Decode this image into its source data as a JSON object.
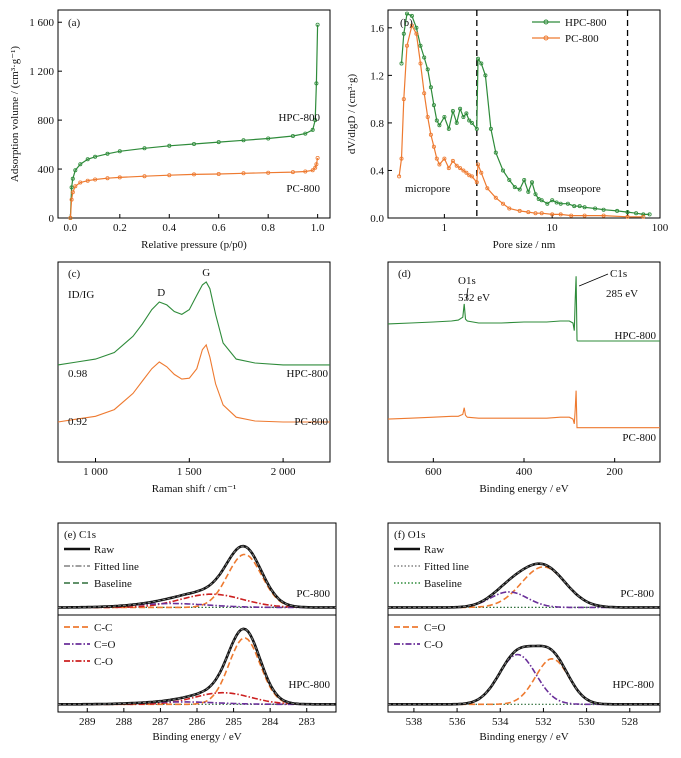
{
  "colors": {
    "green": "#2e8b3a",
    "orange": "#ee7a30",
    "black": "#111111",
    "gray": "#808080",
    "purple": "#6a2f9a",
    "red": "#cc2020",
    "baseline_green": "#2f6f3a"
  },
  "chart_data": [
    {
      "id": "a",
      "type": "line",
      "panel_label": "(a)",
      "xlabel": "Relative pressure (p/p0)",
      "ylabel": "Adsorption volume / (cm³·g⁻¹)",
      "xlim": [
        -0.05,
        1.05
      ],
      "ylim": [
        0,
        1700
      ],
      "xticks": [
        0.0,
        0.2,
        0.4,
        0.6,
        0.8,
        1.0
      ],
      "xtick_labels": [
        "0.0",
        "0.2",
        "0.4",
        "0.6",
        "0.8",
        "1.0"
      ],
      "yticks": [
        0,
        400,
        800,
        1200,
        1600
      ],
      "ytick_labels": [
        "0",
        "400",
        "800",
        "1 200",
        "1 600"
      ],
      "series": [
        {
          "name": "HPC-800",
          "color_key": "green",
          "x": [
            0.0,
            0.005,
            0.01,
            0.02,
            0.04,
            0.07,
            0.1,
            0.15,
            0.2,
            0.3,
            0.4,
            0.5,
            0.6,
            0.7,
            0.8,
            0.9,
            0.95,
            0.98,
            0.99,
            0.995,
            1.0
          ],
          "y": [
            0,
            250,
            320,
            390,
            440,
            480,
            500,
            525,
            545,
            570,
            590,
            605,
            620,
            635,
            650,
            670,
            690,
            720,
            800,
            1100,
            1580
          ]
        },
        {
          "name": "PC-800",
          "color_key": "orange",
          "x": [
            0.0,
            0.005,
            0.01,
            0.02,
            0.04,
            0.07,
            0.1,
            0.15,
            0.2,
            0.3,
            0.4,
            0.5,
            0.6,
            0.7,
            0.8,
            0.9,
            0.95,
            0.98,
            0.99,
            0.995,
            1.0
          ],
          "y": [
            0,
            150,
            210,
            260,
            290,
            305,
            315,
            325,
            332,
            342,
            350,
            356,
            360,
            365,
            370,
            375,
            380,
            390,
            410,
            440,
            490
          ]
        }
      ]
    },
    {
      "id": "b",
      "type": "line",
      "panel_label": "(b)",
      "xscale": "log",
      "xlabel": "Pore size / nm",
      "ylabel": "dV/dlgD / (cm³·g)",
      "xlim": [
        0.3,
        100
      ],
      "ylim": [
        0,
        1.75
      ],
      "xticks": [
        1,
        10,
        100
      ],
      "xtick_labels": [
        "1",
        "10",
        "100"
      ],
      "yticks": [
        0.0,
        0.4,
        0.8,
        1.2,
        1.6
      ],
      "ytick_labels": [
        "0.0",
        "0.4",
        "0.8",
        "1.2",
        "1.6"
      ],
      "vlines": [
        2,
        50
      ],
      "annotations": [
        "micropore",
        "mseopore"
      ],
      "legend": "top-right",
      "series": [
        {
          "name": "HPC-800",
          "color_key": "green",
          "x": [
            0.4,
            0.42,
            0.45,
            0.5,
            0.55,
            0.6,
            0.65,
            0.7,
            0.75,
            0.8,
            0.85,
            0.9,
            1.0,
            1.1,
            1.2,
            1.3,
            1.4,
            1.5,
            1.6,
            1.7,
            1.8,
            2.0,
            2.05,
            2.2,
            2.4,
            2.7,
            3.0,
            3.5,
            4.0,
            4.5,
            5.0,
            5.5,
            6.0,
            6.5,
            7.0,
            7.5,
            8.0,
            9.0,
            10,
            11,
            12,
            14,
            16,
            18,
            20,
            25,
            30,
            40,
            50,
            60,
            70,
            80
          ],
          "y": [
            1.3,
            1.55,
            1.72,
            1.7,
            1.6,
            1.45,
            1.35,
            1.25,
            1.1,
            0.95,
            0.82,
            0.78,
            0.85,
            0.75,
            0.9,
            0.8,
            0.92,
            0.85,
            0.88,
            0.82,
            0.8,
            0.75,
            1.34,
            1.3,
            1.2,
            0.75,
            0.55,
            0.4,
            0.32,
            0.26,
            0.24,
            0.32,
            0.22,
            0.3,
            0.2,
            0.16,
            0.15,
            0.12,
            0.15,
            0.13,
            0.12,
            0.12,
            0.1,
            0.1,
            0.09,
            0.08,
            0.07,
            0.06,
            0.05,
            0.04,
            0.03,
            0.03
          ]
        },
        {
          "name": "PC-800",
          "color_key": "orange",
          "x": [
            0.38,
            0.4,
            0.42,
            0.45,
            0.5,
            0.55,
            0.6,
            0.65,
            0.7,
            0.75,
            0.8,
            0.85,
            0.9,
            1.0,
            1.1,
            1.2,
            1.3,
            1.4,
            1.5,
            1.6,
            1.7,
            1.8,
            2.0,
            2.05,
            2.2,
            2.5,
            3.0,
            3.5,
            4.0,
            5.0,
            6.0,
            7.0,
            8.0,
            10,
            12,
            15,
            20,
            30,
            50,
            70
          ],
          "y": [
            0.35,
            0.5,
            1.0,
            1.45,
            1.62,
            1.55,
            1.3,
            1.05,
            0.85,
            0.7,
            0.6,
            0.5,
            0.45,
            0.5,
            0.42,
            0.48,
            0.44,
            0.42,
            0.4,
            0.38,
            0.36,
            0.35,
            0.3,
            0.45,
            0.38,
            0.25,
            0.17,
            0.12,
            0.08,
            0.06,
            0.05,
            0.04,
            0.04,
            0.03,
            0.03,
            0.02,
            0.02,
            0.02,
            0.01,
            0.01
          ]
        }
      ]
    },
    {
      "id": "c",
      "type": "line",
      "panel_label": "(c)",
      "xlabel": "Raman shift / cm⁻¹",
      "ylabel": "",
      "xlim": [
        800,
        2250
      ],
      "ylim": [
        0,
        2.1
      ],
      "xticks": [
        1000,
        1500,
        2000
      ],
      "xtick_labels": [
        "1 000",
        "1 500",
        "2 000"
      ],
      "ratio_label": "ID/IG",
      "peak_labels": [
        "D",
        "G"
      ],
      "series": [
        {
          "name": "HPC-800",
          "color_key": "green",
          "ratio": "0.98",
          "x": [
            800,
            900,
            1000,
            1100,
            1200,
            1250,
            1300,
            1340,
            1380,
            1420,
            1460,
            1500,
            1540,
            1570,
            1590,
            1610,
            1640,
            1680,
            1750,
            1850,
            2000,
            2250
          ],
          "y": [
            1.02,
            1.05,
            1.08,
            1.15,
            1.32,
            1.45,
            1.6,
            1.68,
            1.65,
            1.58,
            1.55,
            1.6,
            1.75,
            1.86,
            1.89,
            1.82,
            1.55,
            1.25,
            1.08,
            1.04,
            1.02,
            1.02
          ]
        },
        {
          "name": "PC-800",
          "color_key": "orange",
          "ratio": "0.92",
          "x": [
            800,
            900,
            1000,
            1100,
            1200,
            1250,
            1300,
            1340,
            1380,
            1420,
            1460,
            1500,
            1540,
            1570,
            1590,
            1610,
            1640,
            1680,
            1750,
            1850,
            2000,
            2250
          ],
          "y": [
            0.42,
            0.45,
            0.48,
            0.55,
            0.72,
            0.85,
            0.98,
            1.05,
            1.0,
            0.92,
            0.87,
            0.88,
            0.98,
            1.18,
            1.23,
            1.1,
            0.82,
            0.6,
            0.47,
            0.43,
            0.42,
            0.42
          ]
        }
      ],
      "series_labels": [
        "HPC-800",
        "PC-800"
      ]
    },
    {
      "id": "d",
      "type": "line",
      "panel_label": "(d)",
      "xreversed": true,
      "xlabel": "Binding energy / eV",
      "ylabel": "",
      "xlim": [
        700,
        100
      ],
      "ylim": [
        0,
        2.1
      ],
      "xticks": [
        600,
        400,
        200
      ],
      "xtick_labels": [
        "600",
        "400",
        "200"
      ],
      "peak_annotations": [
        {
          "name": "O1s",
          "energy": "532 eV"
        },
        {
          "name": "C1s",
          "energy": "285 eV"
        }
      ],
      "series": [
        {
          "name": "HPC-800",
          "color_key": "green",
          "x": [
            700,
            650,
            600,
            560,
            545,
            535,
            532,
            529,
            525,
            500,
            450,
            400,
            350,
            320,
            300,
            292,
            289,
            287,
            285,
            283,
            282,
            270,
            250,
            200,
            150,
            100
          ],
          "y": [
            1.45,
            1.46,
            1.47,
            1.48,
            1.49,
            1.52,
            1.66,
            1.5,
            1.48,
            1.46,
            1.46,
            1.47,
            1.47,
            1.48,
            1.48,
            1.46,
            1.38,
            1.7,
            1.95,
            1.28,
            1.27,
            1.27,
            1.27,
            1.27,
            1.27,
            1.27
          ]
        },
        {
          "name": "PC-800",
          "color_key": "orange",
          "x": [
            700,
            650,
            600,
            560,
            545,
            535,
            532,
            529,
            525,
            500,
            450,
            400,
            350,
            320,
            300,
            292,
            289,
            287,
            285,
            283,
            282,
            270,
            250,
            200,
            150,
            100
          ],
          "y": [
            0.45,
            0.46,
            0.47,
            0.48,
            0.48,
            0.5,
            0.57,
            0.49,
            0.47,
            0.46,
            0.46,
            0.46,
            0.46,
            0.47,
            0.47,
            0.45,
            0.4,
            0.55,
            0.75,
            0.36,
            0.36,
            0.36,
            0.36,
            0.36,
            0.36,
            0.36
          ]
        }
      ],
      "series_labels": [
        "HPC-800",
        "PC-800"
      ]
    },
    {
      "id": "e",
      "type": "line",
      "panel_label": "(e) C1s",
      "xreversed": true,
      "xlabel": "Binding energy / eV",
      "xlim": [
        289.8,
        282.2
      ],
      "xticks": [
        289,
        288,
        287,
        286,
        285,
        284,
        283
      ],
      "xtick_labels": [
        "289",
        "288",
        "287",
        "286",
        "285",
        "284",
        "283"
      ],
      "legend_top": [
        {
          "name": "Raw",
          "color_key": "black",
          "style": "solid"
        },
        {
          "name": "Fitted line",
          "color_key": "gray",
          "style": "dashdot"
        },
        {
          "name": "Baseline",
          "color_key": "baseline_green",
          "style": "dashed"
        }
      ],
      "legend_bottom": [
        {
          "name": "C-C",
          "color_key": "orange",
          "style": "dashed"
        },
        {
          "name": "C=O",
          "color_key": "purple",
          "style": "dashdot"
        },
        {
          "name": "C-O",
          "color_key": "red",
          "style": "dashdot"
        }
      ],
      "subpanels": [
        {
          "name": "PC-800",
          "baseline": 0.02,
          "components": [
            {
              "name": "C-C",
              "color_key": "orange",
              "center": 284.7,
              "height": 0.68,
              "width": 0.55
            },
            {
              "name": "C-O",
              "color_key": "red",
              "center": 285.6,
              "height": 0.17,
              "width": 1.0
            },
            {
              "name": "C=O",
              "color_key": "purple",
              "center": 286.7,
              "height": 0.05,
              "width": 1.2
            }
          ]
        },
        {
          "name": "HPC-800",
          "baseline": 0.02,
          "components": [
            {
              "name": "C-C",
              "color_key": "orange",
              "center": 284.7,
              "height": 0.8,
              "width": 0.5
            },
            {
              "name": "C-O",
              "color_key": "red",
              "center": 285.3,
              "height": 0.14,
              "width": 0.9
            },
            {
              "name": "C=O",
              "color_key": "purple",
              "center": 286.5,
              "height": 0.03,
              "width": 1.2
            }
          ]
        }
      ]
    },
    {
      "id": "f",
      "type": "line",
      "panel_label": "(f) O1s",
      "xreversed": true,
      "xlabel": "Binding energy / eV",
      "xlim": [
        539.2,
        526.6
      ],
      "xticks": [
        538,
        536,
        534,
        532,
        530,
        528
      ],
      "xtick_labels": [
        "538",
        "536",
        "534",
        "532",
        "530",
        "528"
      ],
      "legend_top": [
        {
          "name": "Raw",
          "color_key": "black",
          "style": "solid"
        },
        {
          "name": "Fitted line",
          "color_key": "gray",
          "style": "dotted"
        },
        {
          "name": "Baseline",
          "color_key": "green",
          "style": "dotted"
        }
      ],
      "legend_bottom": [
        {
          "name": "C=O",
          "color_key": "orange",
          "style": "dashed"
        },
        {
          "name": "C-O",
          "color_key": "purple",
          "style": "dashdot"
        }
      ],
      "subpanels": [
        {
          "name": "PC-800",
          "baseline": 0.02,
          "components": [
            {
              "name": "C=O",
              "color_key": "orange",
              "center": 532.0,
              "height": 0.52,
              "width": 1.2
            },
            {
              "name": "C-O",
              "color_key": "purple",
              "center": 533.6,
              "height": 0.2,
              "width": 1.0
            }
          ]
        },
        {
          "name": "HPC-800",
          "baseline": 0.02,
          "components": [
            {
              "name": "C=O",
              "color_key": "orange",
              "center": 531.6,
              "height": 0.55,
              "width": 0.9
            },
            {
              "name": "C-O",
              "color_key": "purple",
              "center": 533.2,
              "height": 0.6,
              "width": 1.0
            }
          ]
        }
      ]
    }
  ]
}
